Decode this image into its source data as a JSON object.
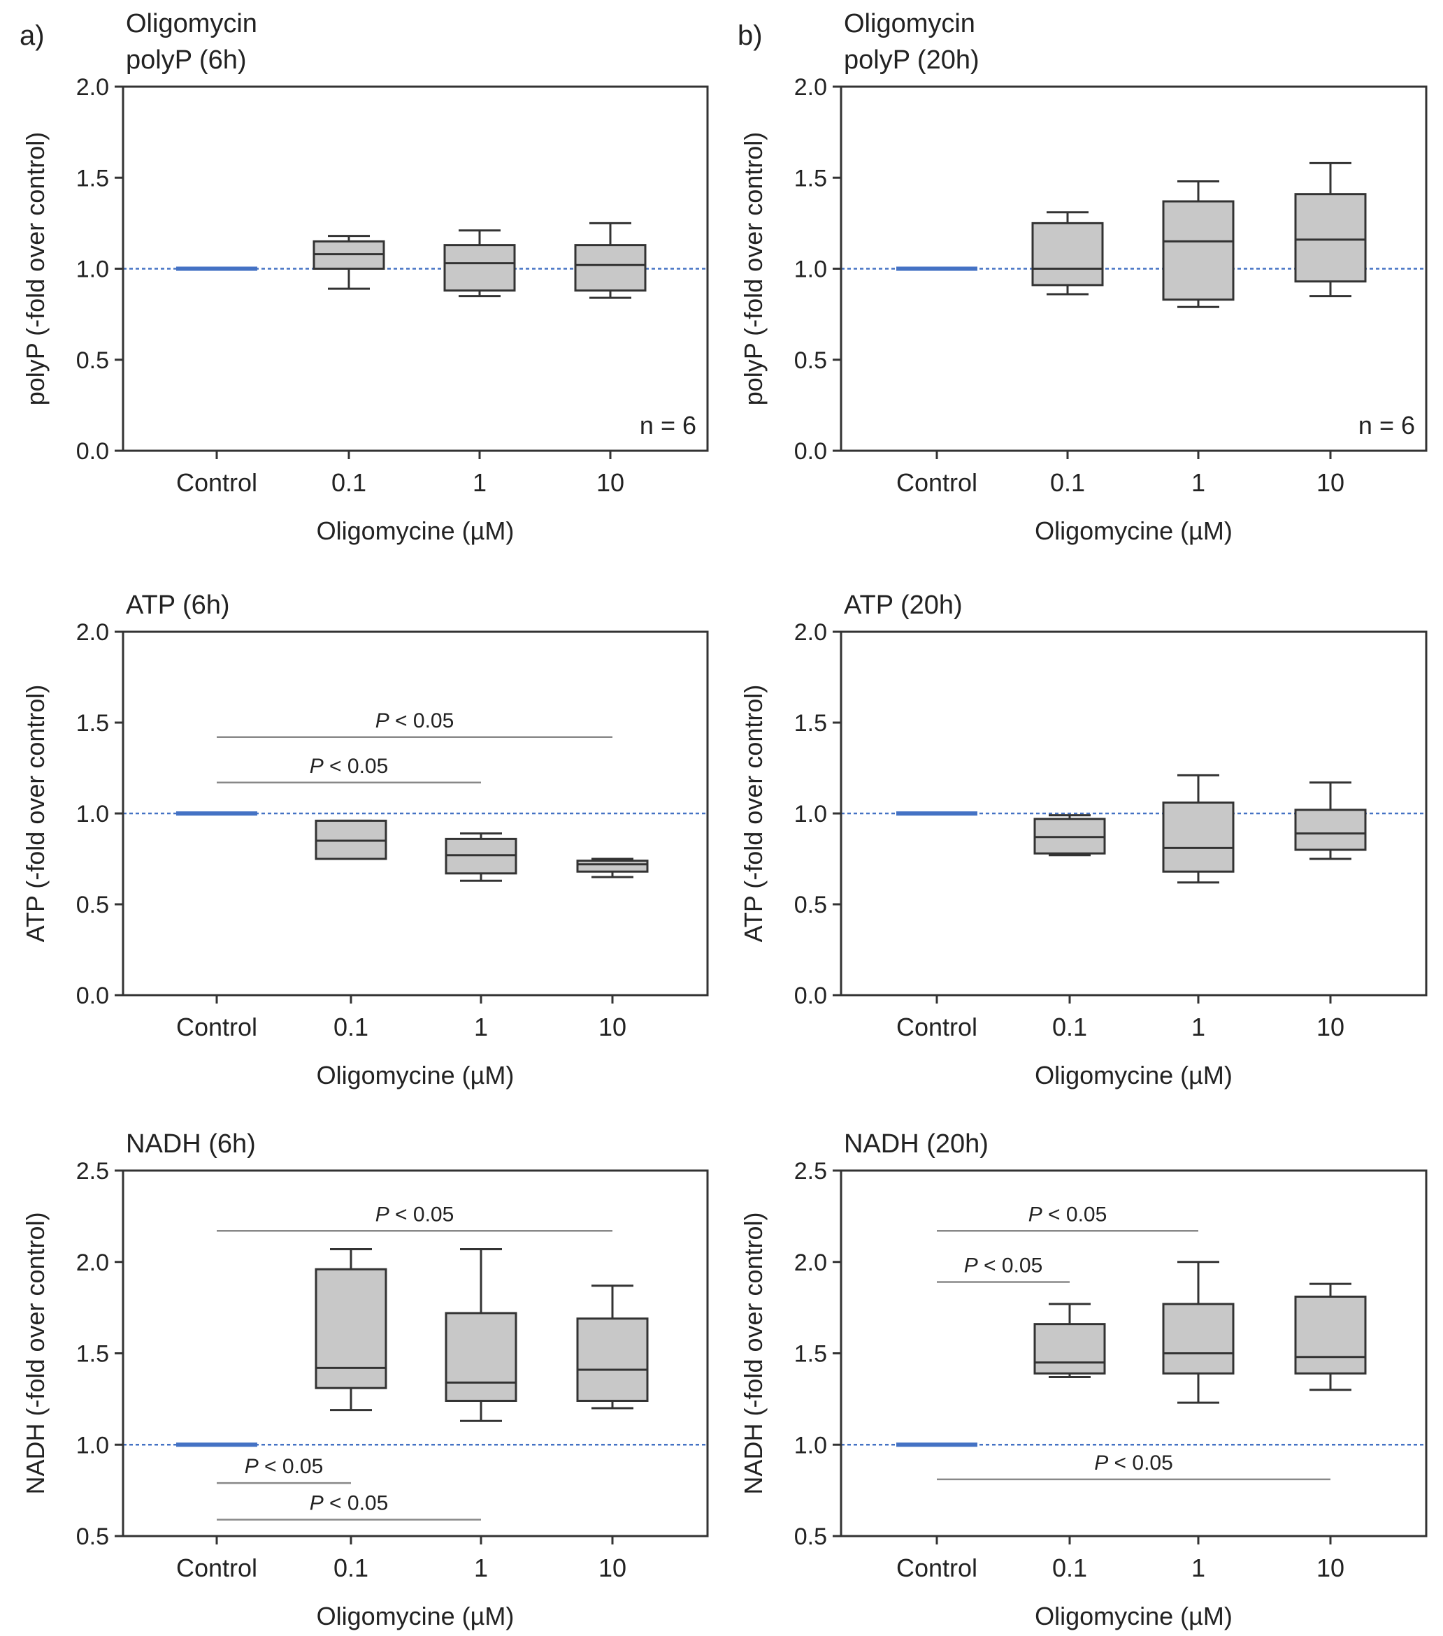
{
  "chart_data": [
    {
      "type": "box",
      "panel_letter": "a)",
      "title_lines": [
        "Oligomycin",
        "polyP (6h)"
      ],
      "ylabel": "polyP (-fold over control)",
      "xlabel": "Oligomycine (µM)",
      "categories": [
        "Control",
        "0.1",
        "1",
        "10"
      ],
      "yticks": [
        "0.0",
        "0.5",
        "1.0",
        "1.5",
        "2.0"
      ],
      "ylim": [
        0,
        2.0
      ],
      "reference_line": 1.0,
      "control_value": 1.0,
      "boxes": [
        {
          "category": "0.1",
          "whisker_low": 0.89,
          "q1": 1.0,
          "median": 1.08,
          "q3": 1.15,
          "whisker_high": 1.18
        },
        {
          "category": "1",
          "whisker_low": 0.85,
          "q1": 0.88,
          "median": 1.03,
          "q3": 1.13,
          "whisker_high": 1.21
        },
        {
          "category": "10",
          "whisker_low": 0.84,
          "q1": 0.88,
          "median": 1.02,
          "q3": 1.13,
          "whisker_high": 1.25
        }
      ],
      "annotation": "n = 6",
      "significance": []
    },
    {
      "type": "box",
      "panel_letter": "b)",
      "title_lines": [
        "Oligomycin",
        "polyP  (20h)"
      ],
      "ylabel": "polyP (-fold over control)",
      "xlabel": "Oligomycine (µM)",
      "categories": [
        "Control",
        "0.1",
        "1",
        "10"
      ],
      "yticks": [
        "0.0",
        "0.5",
        "1.0",
        "1.5",
        "2.0"
      ],
      "ylim": [
        0,
        2.0
      ],
      "reference_line": 1.0,
      "control_value": 1.0,
      "boxes": [
        {
          "category": "0.1",
          "whisker_low": 0.86,
          "q1": 0.91,
          "median": 1.0,
          "q3": 1.25,
          "whisker_high": 1.31
        },
        {
          "category": "1",
          "whisker_low": 0.79,
          "q1": 0.83,
          "median": 1.15,
          "q3": 1.37,
          "whisker_high": 1.48
        },
        {
          "category": "10",
          "whisker_low": 0.85,
          "q1": 0.93,
          "median": 1.16,
          "q3": 1.41,
          "whisker_high": 1.58
        }
      ],
      "annotation": "n = 6",
      "significance": []
    },
    {
      "type": "box",
      "panel_letter": "",
      "title_lines": [
        "ATP (6h)"
      ],
      "ylabel": "ATP (-fold over control)",
      "xlabel": "Oligomycine (µM)",
      "categories": [
        "Control",
        "0.1",
        "1",
        "10"
      ],
      "yticks": [
        "0.0",
        "0.5",
        "1.0",
        "1.5",
        "2.0"
      ],
      "ylim": [
        0,
        2.0
      ],
      "reference_line": 1.0,
      "control_value": 1.0,
      "boxes": [
        {
          "category": "0.1",
          "whisker_low": 0.75,
          "q1": 0.75,
          "median": 0.85,
          "q3": 0.96,
          "whisker_high": 0.96
        },
        {
          "category": "1",
          "whisker_low": 0.63,
          "q1": 0.67,
          "median": 0.77,
          "q3": 0.86,
          "whisker_high": 0.89
        },
        {
          "category": "10",
          "whisker_low": 0.65,
          "q1": 0.68,
          "median": 0.72,
          "q3": 0.74,
          "whisker_high": 0.75
        }
      ],
      "annotation": "",
      "significance": [
        {
          "from": "Control",
          "to": "10",
          "y": 1.42,
          "label_italic": "P",
          "label_rest": " < 0.05"
        },
        {
          "from": "Control",
          "to": "1",
          "y": 1.17,
          "label_italic": "P",
          "label_rest": " < 0.05"
        }
      ]
    },
    {
      "type": "box",
      "panel_letter": "",
      "title_lines": [
        "ATP (20h)"
      ],
      "ylabel": "ATP (-fold over control)",
      "xlabel": "Oligomycine (µM)",
      "categories": [
        "Control",
        "0.1",
        "1",
        "10"
      ],
      "yticks": [
        "0.0",
        "0.5",
        "1.0",
        "1.5",
        "2.0"
      ],
      "ylim": [
        0,
        2.0
      ],
      "reference_line": 1.0,
      "control_value": 1.0,
      "boxes": [
        {
          "category": "0.1",
          "whisker_low": 0.77,
          "q1": 0.78,
          "median": 0.87,
          "q3": 0.97,
          "whisker_high": 0.99
        },
        {
          "category": "1",
          "whisker_low": 0.62,
          "q1": 0.68,
          "median": 0.81,
          "q3": 1.06,
          "whisker_high": 1.21
        },
        {
          "category": "10",
          "whisker_low": 0.75,
          "q1": 0.8,
          "median": 0.89,
          "q3": 1.02,
          "whisker_high": 1.17
        }
      ],
      "annotation": "",
      "significance": []
    },
    {
      "type": "box",
      "panel_letter": "",
      "title_lines": [
        "NADH (6h)"
      ],
      "ylabel": "NADH (-fold over control)",
      "xlabel": "Oligomycine (µM)",
      "categories": [
        "Control",
        "0.1",
        "1",
        "10"
      ],
      "yticks": [
        "0.5",
        "1.0",
        "1.5",
        "2.0",
        "2.5"
      ],
      "ylim": [
        0.5,
        2.5
      ],
      "reference_line": 1.0,
      "control_value": 1.0,
      "boxes": [
        {
          "category": "0.1",
          "whisker_low": 1.19,
          "q1": 1.31,
          "median": 1.42,
          "q3": 1.96,
          "whisker_high": 2.07
        },
        {
          "category": "1",
          "whisker_low": 1.13,
          "q1": 1.24,
          "median": 1.34,
          "q3": 1.72,
          "whisker_high": 2.07
        },
        {
          "category": "10",
          "whisker_low": 1.2,
          "q1": 1.24,
          "median": 1.41,
          "q3": 1.69,
          "whisker_high": 1.87
        }
      ],
      "annotation": "",
      "significance": [
        {
          "from": "Control",
          "to": "10",
          "y": 2.17,
          "label_italic": "P",
          "label_rest": " < 0.05"
        },
        {
          "from": "Control",
          "to": "0.1",
          "y": 0.79,
          "label_italic": "P",
          "label_rest": " < 0.05"
        },
        {
          "from": "Control",
          "to": "1",
          "y": 0.59,
          "label_italic": "P",
          "label_rest": " < 0.05"
        }
      ]
    },
    {
      "type": "box",
      "panel_letter": "",
      "title_lines": [
        "NADH (20h)"
      ],
      "ylabel": "NADH (-fold over control)",
      "xlabel": "Oligomycine (µM)",
      "categories": [
        "Control",
        "0.1",
        "1",
        "10"
      ],
      "yticks": [
        "0.5",
        "1.0",
        "1.5",
        "2.0",
        "2.5"
      ],
      "ylim": [
        0.5,
        2.5
      ],
      "reference_line": 1.0,
      "control_value": 1.0,
      "boxes": [
        {
          "category": "0.1",
          "whisker_low": 1.37,
          "q1": 1.39,
          "median": 1.45,
          "q3": 1.66,
          "whisker_high": 1.77
        },
        {
          "category": "1",
          "whisker_low": 1.23,
          "q1": 1.39,
          "median": 1.5,
          "q3": 1.77,
          "whisker_high": 2.0
        },
        {
          "category": "10",
          "whisker_low": 1.3,
          "q1": 1.39,
          "median": 1.48,
          "q3": 1.81,
          "whisker_high": 1.88
        }
      ],
      "annotation": "",
      "significance": [
        {
          "from": "Control",
          "to": "1",
          "y": 2.17,
          "label_italic": "P",
          "label_rest": " < 0.05"
        },
        {
          "from": "Control",
          "to": "0.1",
          "y": 1.89,
          "label_italic": "P",
          "label_rest": " < 0.05"
        },
        {
          "from": "Control",
          "to": "10",
          "y": 0.81,
          "label_italic": "P",
          "label_rest": " < 0.05"
        }
      ]
    }
  ]
}
